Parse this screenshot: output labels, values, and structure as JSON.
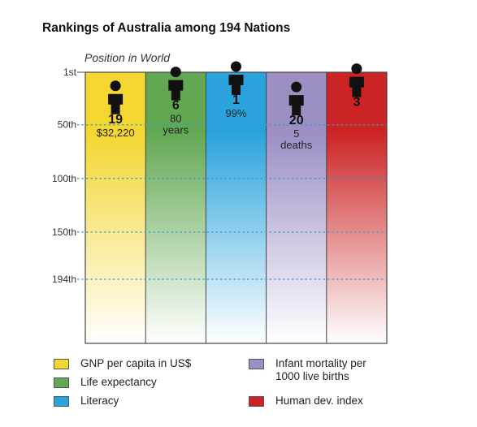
{
  "title": "Rankings of Australia among 194 Nations",
  "chart_data": {
    "type": "bar",
    "subtitle": "Position in World",
    "y_axis": {
      "ticks": [
        {
          "rank": 1,
          "label": "1st"
        },
        {
          "rank": 50,
          "label": "50th"
        },
        {
          "rank": 100,
          "label": "100th"
        },
        {
          "rank": 150,
          "label": "150th"
        },
        {
          "rank": 194,
          "label": "194th"
        }
      ],
      "range": [
        1,
        194
      ],
      "inverted": true
    },
    "gridlines": "dotted",
    "legend_position": "bottom",
    "series": [
      {
        "name": "GNP per capita in US$",
        "color": "#f3d630",
        "rank": 19,
        "rank_label": "19",
        "value_label": "$32,220"
      },
      {
        "name": "Life expectancy",
        "color": "#62a852",
        "rank": 6,
        "rank_label": "6",
        "value_label": "80\nyears"
      },
      {
        "name": "Literacy",
        "color": "#2aa3dc",
        "rank": 1,
        "rank_label": "1",
        "value_label": "99%"
      },
      {
        "name": "Infant mortality per\n1000 live births",
        "color": "#9d8ec4",
        "rank": 20,
        "rank_label": "20",
        "value_label": "5\ndeaths"
      },
      {
        "name": "Human dev. index",
        "color": "#cc2424",
        "rank": 3,
        "rank_label": "3",
        "value_label": ""
      }
    ]
  }
}
